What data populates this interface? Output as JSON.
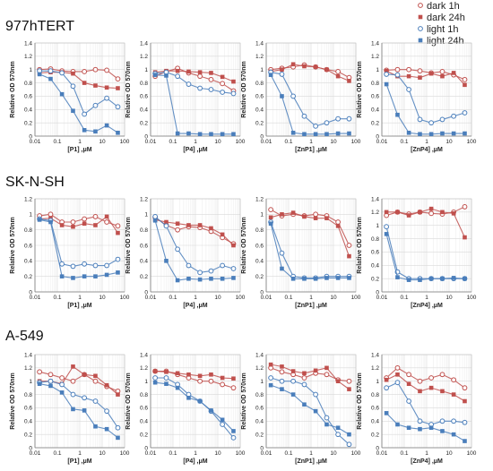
{
  "legend": [
    {
      "label": "dark 1h",
      "marker": "open-circle",
      "color": "#c0504d"
    },
    {
      "label": "dark 24h",
      "marker": "filled-square",
      "color": "#c0504d"
    },
    {
      "label": "light 1h",
      "marker": "open-circle",
      "color": "#4a7ebb"
    },
    {
      "label": "light 24h",
      "marker": "filled-square",
      "color": "#4a7ebb"
    }
  ],
  "colors": {
    "dark": "#c0504d",
    "light": "#4a7ebb",
    "grid": "#d9d9d9"
  },
  "rows": [
    {
      "cell_line": "977hTERT"
    },
    {
      "cell_line": "SK-N-SH"
    },
    {
      "cell_line": "A-549"
    }
  ],
  "chart_data": [
    {
      "type": "line",
      "row": 0,
      "col": 0,
      "xlabel": "[P1] ,μM",
      "ylabel": "Relative OD 570nm",
      "xscale": "log",
      "xlim": [
        0.01,
        100
      ],
      "ylim": [
        0,
        1.4
      ],
      "x_ticks": [
        "0.01",
        "0.1",
        "1",
        "10",
        "100"
      ],
      "y_ticks": [
        "0",
        "0.2",
        "0.4",
        "0.6",
        "0.8",
        "1",
        "1.2",
        "1.4"
      ],
      "x": [
        0.016,
        0.05,
        0.16,
        0.5,
        1.6,
        5,
        16,
        50
      ],
      "series": [
        {
          "name": "dark 1h",
          "values": [
            1.0,
            1.01,
            0.98,
            0.97,
            0.97,
            1.0,
            0.99,
            0.86
          ]
        },
        {
          "name": "dark 24h",
          "values": [
            0.95,
            0.96,
            0.96,
            0.94,
            0.8,
            0.76,
            0.73,
            0.72
          ]
        },
        {
          "name": "light 1h",
          "values": [
            0.98,
            0.98,
            0.95,
            0.75,
            0.33,
            0.46,
            0.57,
            0.44
          ]
        },
        {
          "name": "light 24h",
          "values": [
            0.93,
            0.86,
            0.63,
            0.38,
            0.09,
            0.07,
            0.16,
            0.05
          ]
        }
      ]
    },
    {
      "type": "line",
      "row": 0,
      "col": 1,
      "xlabel": "[P4] ,μM",
      "ylabel": "Relative OD 570nm",
      "xscale": "log",
      "xlim": [
        0.01,
        100
      ],
      "ylim": [
        0,
        1.4
      ],
      "x_ticks": [
        "0.01",
        "0.1",
        "1",
        "10",
        "100"
      ],
      "y_ticks": [
        "0",
        "0.2",
        "0.4",
        "0.6",
        "0.8",
        "1",
        "1.2",
        "1.4"
      ],
      "x": [
        0.016,
        0.05,
        0.16,
        0.5,
        1.6,
        5,
        16,
        50
      ],
      "series": [
        {
          "name": "dark 1h",
          "values": [
            0.9,
            0.97,
            1.02,
            0.95,
            0.9,
            0.85,
            0.79,
            0.68
          ]
        },
        {
          "name": "dark 24h",
          "values": [
            0.96,
            0.98,
            0.98,
            0.97,
            0.96,
            0.95,
            0.89,
            0.82
          ]
        },
        {
          "name": "light 1h",
          "values": [
            0.94,
            0.96,
            0.9,
            0.78,
            0.72,
            0.7,
            0.66,
            0.64
          ]
        },
        {
          "name": "light 24h",
          "values": [
            0.92,
            0.91,
            0.04,
            0.04,
            0.03,
            0.03,
            0.03,
            0.03
          ]
        }
      ]
    },
    {
      "type": "line",
      "row": 0,
      "col": 2,
      "xlabel": "[ZnP1] ,μM",
      "ylabel": "Relative OD 570nm",
      "xscale": "log",
      "xlim": [
        0.01,
        100
      ],
      "ylim": [
        0,
        1.4
      ],
      "x_ticks": [
        "0.01",
        "0.1",
        "1",
        "10",
        "100"
      ],
      "y_ticks": [
        "0",
        "0.2",
        "0.4",
        "0.6",
        "0.8",
        "1",
        "1.2",
        "1.4"
      ],
      "x": [
        0.016,
        0.05,
        0.16,
        0.5,
        1.6,
        5,
        16,
        50
      ],
      "series": [
        {
          "name": "dark 1h",
          "values": [
            1.0,
            1.02,
            1.04,
            1.07,
            1.04,
            1.0,
            0.97,
            0.88
          ]
        },
        {
          "name": "dark 24h",
          "values": [
            0.97,
            1.0,
            1.08,
            1.05,
            1.04,
            1.0,
            0.9,
            0.83
          ]
        },
        {
          "name": "light 1h",
          "values": [
            0.96,
            0.93,
            0.6,
            0.3,
            0.15,
            0.2,
            0.26,
            0.26
          ]
        },
        {
          "name": "light 24h",
          "values": [
            0.92,
            0.6,
            0.05,
            0.03,
            0.03,
            0.03,
            0.04,
            0.04
          ]
        }
      ]
    },
    {
      "type": "line",
      "row": 0,
      "col": 3,
      "xlabel": "[ZnP4] ,μM",
      "ylabel": "Relative OD 570nm",
      "xscale": "log",
      "xlim": [
        0.01,
        100
      ],
      "ylim": [
        0,
        1.4
      ],
      "x_ticks": [
        "0.01",
        "0.1",
        "1",
        "10",
        "100"
      ],
      "y_ticks": [
        "0",
        "0.2",
        "0.4",
        "0.6",
        "0.8",
        "1",
        "1.2",
        "1.4"
      ],
      "x": [
        0.016,
        0.05,
        0.16,
        0.5,
        1.6,
        5,
        16,
        50
      ],
      "series": [
        {
          "name": "dark 1h",
          "values": [
            0.99,
            1.0,
            1.0,
            0.98,
            0.95,
            0.97,
            0.92,
            0.85
          ]
        },
        {
          "name": "dark 24h",
          "values": [
            0.98,
            0.9,
            0.9,
            0.88,
            0.94,
            0.9,
            0.95,
            0.77
          ]
        },
        {
          "name": "light 1h",
          "values": [
            0.93,
            0.92,
            0.7,
            0.25,
            0.2,
            0.25,
            0.3,
            0.35
          ]
        },
        {
          "name": "light 24h",
          "values": [
            0.78,
            0.32,
            0.05,
            0.03,
            0.03,
            0.04,
            0.04,
            0.04
          ]
        }
      ]
    },
    {
      "type": "line",
      "row": 1,
      "col": 0,
      "xlabel": "[P1] ,μM",
      "ylabel": "Relative OD 570nm",
      "xscale": "log",
      "xlim": [
        0.01,
        100
      ],
      "ylim": [
        0,
        1.2
      ],
      "x_ticks": [
        "0.01",
        "0.1",
        "1",
        "10",
        "100"
      ],
      "y_ticks": [
        "0",
        "0.2",
        "0.4",
        "0.6",
        "0.8",
        "1",
        "1.2"
      ],
      "x": [
        0.016,
        0.05,
        0.16,
        0.5,
        1.6,
        5,
        16,
        50
      ],
      "series": [
        {
          "name": "dark 1h",
          "values": [
            0.98,
            1.0,
            0.9,
            0.9,
            0.94,
            0.97,
            0.9,
            0.85
          ]
        },
        {
          "name": "dark 24h",
          "values": [
            0.94,
            0.95,
            0.86,
            0.84,
            0.88,
            0.86,
            0.97,
            0.76
          ]
        },
        {
          "name": "light 1h",
          "values": [
            0.94,
            0.92,
            0.36,
            0.33,
            0.36,
            0.34,
            0.34,
            0.42
          ]
        },
        {
          "name": "light 24h",
          "values": [
            0.93,
            0.9,
            0.2,
            0.18,
            0.2,
            0.2,
            0.22,
            0.25
          ]
        }
      ]
    },
    {
      "type": "line",
      "row": 1,
      "col": 1,
      "xlabel": "[P4] ,μM",
      "ylabel": "Relative OD 570nm",
      "xscale": "log",
      "xlim": [
        0.01,
        100
      ],
      "ylim": [
        0,
        1.2
      ],
      "x_ticks": [
        "0.01",
        "0.1",
        "1",
        "10",
        "100"
      ],
      "y_ticks": [
        "0",
        "0.2",
        "0.4",
        "0.6",
        "0.8",
        "1",
        "1.2"
      ],
      "x": [
        0.016,
        0.05,
        0.16,
        0.5,
        1.6,
        5,
        16,
        50
      ],
      "series": [
        {
          "name": "dark 1h",
          "values": [
            0.96,
            0.86,
            0.8,
            0.84,
            0.83,
            0.78,
            0.7,
            0.62
          ]
        },
        {
          "name": "dark 24h",
          "values": [
            0.93,
            0.9,
            0.88,
            0.86,
            0.86,
            0.82,
            0.74,
            0.6
          ]
        },
        {
          "name": "light 1h",
          "values": [
            0.97,
            0.85,
            0.55,
            0.34,
            0.25,
            0.27,
            0.34,
            0.3
          ]
        },
        {
          "name": "light 24h",
          "values": [
            0.92,
            0.4,
            0.15,
            0.17,
            0.16,
            0.17,
            0.17,
            0.18
          ]
        }
      ]
    },
    {
      "type": "line",
      "row": 1,
      "col": 2,
      "xlabel": "[ZnP1] ,μM",
      "ylabel": "Relative OD 570nm",
      "xscale": "log",
      "xlim": [
        0.01,
        100
      ],
      "ylim": [
        0,
        1.2
      ],
      "x_ticks": [
        "0.01",
        "0.1",
        "1",
        "10",
        "100"
      ],
      "y_ticks": [
        "0",
        "0.2",
        "0.4",
        "0.6",
        "0.8",
        "1",
        "1.2"
      ],
      "x": [
        0.016,
        0.05,
        0.16,
        0.5,
        1.6,
        5,
        16,
        50
      ],
      "series": [
        {
          "name": "dark 1h",
          "values": [
            1.06,
            0.98,
            1.0,
            0.98,
            1.0,
            0.98,
            0.9,
            0.6
          ]
        },
        {
          "name": "dark 24h",
          "values": [
            0.96,
            1.0,
            1.02,
            0.97,
            0.95,
            0.95,
            0.85,
            0.46
          ]
        },
        {
          "name": "light 1h",
          "values": [
            0.9,
            0.5,
            0.2,
            0.18,
            0.18,
            0.2,
            0.2,
            0.2
          ]
        },
        {
          "name": "light 24h",
          "values": [
            0.88,
            0.3,
            0.17,
            0.17,
            0.17,
            0.18,
            0.18,
            0.18
          ]
        }
      ]
    },
    {
      "type": "line",
      "row": 1,
      "col": 3,
      "xlabel": "[ZnP4] ,μM",
      "ylabel": "Relative OD 570nm",
      "xscale": "log",
      "xlim": [
        0.01,
        100
      ],
      "ylim": [
        0,
        1.4
      ],
      "x_ticks": [
        "0.01",
        "0.1",
        "1",
        "10",
        "100"
      ],
      "y_ticks": [
        "0",
        "0.2",
        "0.4",
        "0.6",
        "0.8",
        "1",
        "1.2",
        "1.4"
      ],
      "x": [
        0.016,
        0.05,
        0.16,
        0.5,
        1.6,
        5,
        16,
        50
      ],
      "series": [
        {
          "name": "dark 1h",
          "values": [
            1.15,
            1.2,
            1.17,
            1.2,
            1.18,
            1.17,
            1.2,
            1.28
          ]
        },
        {
          "name": "dark 24h",
          "values": [
            1.2,
            1.2,
            1.15,
            1.2,
            1.25,
            1.2,
            1.18,
            0.82
          ]
        },
        {
          "name": "light 1h",
          "values": [
            0.98,
            0.3,
            0.2,
            0.2,
            0.2,
            0.2,
            0.2,
            0.2
          ]
        },
        {
          "name": "light 24h",
          "values": [
            0.87,
            0.22,
            0.18,
            0.18,
            0.2,
            0.2,
            0.21,
            0.2
          ]
        }
      ]
    },
    {
      "type": "line",
      "row": 2,
      "col": 0,
      "xlabel": "[P1] ,μM",
      "ylabel": "Relative OD 570nm",
      "xscale": "log",
      "xlim": [
        0.01,
        100
      ],
      "ylim": [
        0,
        1.4
      ],
      "x_ticks": [
        "0.01",
        "0.1",
        "1",
        "10",
        "100"
      ],
      "y_ticks": [
        "0",
        "0.2",
        "0.4",
        "0.6",
        "0.8",
        "1",
        "1.2",
        "1.4"
      ],
      "x": [
        0.016,
        0.05,
        0.16,
        0.5,
        1.6,
        5,
        16,
        50
      ],
      "series": [
        {
          "name": "dark 1h",
          "values": [
            1.14,
            1.1,
            1.05,
            1.0,
            1.1,
            1.0,
            0.92,
            0.85
          ]
        },
        {
          "name": "dark 24h",
          "values": [
            1.0,
            1.0,
            0.96,
            1.22,
            1.1,
            1.08,
            0.94,
            0.8
          ]
        },
        {
          "name": "light 1h",
          "values": [
            0.98,
            1.0,
            0.95,
            0.8,
            0.75,
            0.7,
            0.55,
            0.3
          ]
        },
        {
          "name": "light 24h",
          "values": [
            0.96,
            0.93,
            0.83,
            0.58,
            0.56,
            0.32,
            0.28,
            0.15
          ]
        }
      ]
    },
    {
      "type": "line",
      "row": 2,
      "col": 1,
      "xlabel": "[P4] ,μM",
      "ylabel": "Relative OD 570nm",
      "xscale": "log",
      "xlim": [
        0.01,
        100
      ],
      "ylim": [
        0,
        1.4
      ],
      "x_ticks": [
        "0.01",
        "0.1",
        "1",
        "10",
        "100"
      ],
      "y_ticks": [
        "0",
        "0.2",
        "0.4",
        "0.6",
        "0.8",
        "1",
        "1.2",
        "1.4"
      ],
      "x": [
        0.016,
        0.05,
        0.16,
        0.5,
        1.6,
        5,
        16,
        50
      ],
      "series": [
        {
          "name": "dark 1h",
          "values": [
            1.15,
            1.15,
            1.1,
            1.05,
            1.0,
            1.0,
            0.95,
            0.9
          ]
        },
        {
          "name": "dark 24h",
          "values": [
            1.15,
            1.14,
            1.12,
            1.1,
            1.08,
            1.1,
            1.05,
            1.04
          ]
        },
        {
          "name": "light 1h",
          "values": [
            1.05,
            1.05,
            0.95,
            0.8,
            0.7,
            0.55,
            0.35,
            0.15
          ]
        },
        {
          "name": "light 24h",
          "values": [
            0.98,
            0.96,
            0.9,
            0.75,
            0.7,
            0.56,
            0.42,
            0.25
          ]
        }
      ]
    },
    {
      "type": "line",
      "row": 2,
      "col": 2,
      "xlabel": "[ZnP1] ,μM",
      "ylabel": "Relative OD 570nm",
      "xscale": "log",
      "xlim": [
        0.01,
        100
      ],
      "ylim": [
        0,
        1.4
      ],
      "x_ticks": [
        "0.01",
        "0.1",
        "1",
        "10",
        "100"
      ],
      "y_ticks": [
        "0",
        "0.2",
        "0.4",
        "0.6",
        "0.8",
        "1",
        "1.2",
        "1.4"
      ],
      "x": [
        0.016,
        0.05,
        0.16,
        0.5,
        1.6,
        5,
        16,
        50
      ],
      "series": [
        {
          "name": "dark 1h",
          "values": [
            1.2,
            1.14,
            1.1,
            1.05,
            1.12,
            1.1,
            1.02,
            1.0
          ]
        },
        {
          "name": "dark 24h",
          "values": [
            1.25,
            1.22,
            1.15,
            1.12,
            1.16,
            1.2,
            1.0,
            0.88
          ]
        },
        {
          "name": "light 1h",
          "values": [
            1.05,
            1.0,
            1.0,
            0.95,
            0.8,
            0.45,
            0.2,
            0.05
          ]
        },
        {
          "name": "light 24h",
          "values": [
            0.94,
            0.88,
            0.8,
            0.65,
            0.55,
            0.35,
            0.3,
            0.2
          ]
        }
      ]
    },
    {
      "type": "line",
      "row": 2,
      "col": 3,
      "xlabel": "[ZnP4] ,μM",
      "ylabel": "Relative OD 570nm",
      "xscale": "log",
      "xlim": [
        0.01,
        100
      ],
      "ylim": [
        0,
        1.4
      ],
      "x_ticks": [
        "0.01",
        "0.1",
        "1",
        "10",
        "100"
      ],
      "y_ticks": [
        "0",
        "0.2",
        "0.4",
        "0.6",
        "0.8",
        "1",
        "1.2",
        "1.4"
      ],
      "x": [
        0.016,
        0.05,
        0.16,
        0.5,
        1.6,
        5,
        16,
        50
      ],
      "series": [
        {
          "name": "dark 1h",
          "values": [
            1.05,
            1.2,
            1.1,
            1.0,
            1.05,
            1.1,
            1.02,
            0.9
          ]
        },
        {
          "name": "dark 24h",
          "values": [
            1.02,
            1.1,
            0.96,
            0.85,
            0.9,
            0.85,
            0.8,
            0.7
          ]
        },
        {
          "name": "light 1h",
          "values": [
            0.9,
            0.98,
            0.7,
            0.4,
            0.35,
            0.4,
            0.4,
            0.38
          ]
        },
        {
          "name": "light 24h",
          "values": [
            0.52,
            0.35,
            0.3,
            0.28,
            0.3,
            0.25,
            0.2,
            0.1
          ]
        }
      ]
    }
  ]
}
